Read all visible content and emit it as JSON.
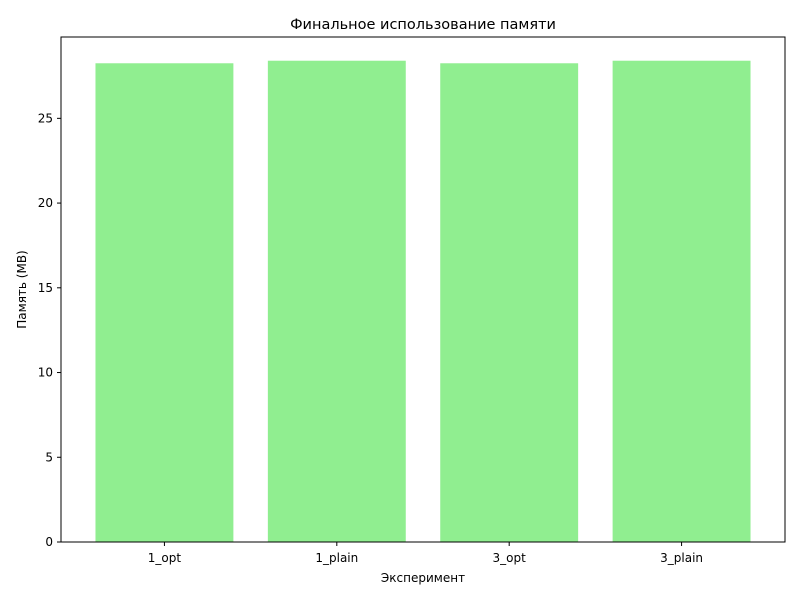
{
  "chart_data": {
    "type": "bar",
    "title": "Финальное использование памяти",
    "xlabel": "Эксперимент",
    "ylabel": "Память (MB)",
    "categories": [
      "1_opt",
      "1_plain",
      "3_opt",
      "3_plain"
    ],
    "values": [
      28.25,
      28.4,
      28.25,
      28.4
    ],
    "ylim": [
      0,
      29.8
    ],
    "yticks": [
      0,
      5,
      10,
      15,
      20,
      25
    ],
    "bar_color": "#90ee90",
    "grid": false,
    "legend": "none"
  }
}
